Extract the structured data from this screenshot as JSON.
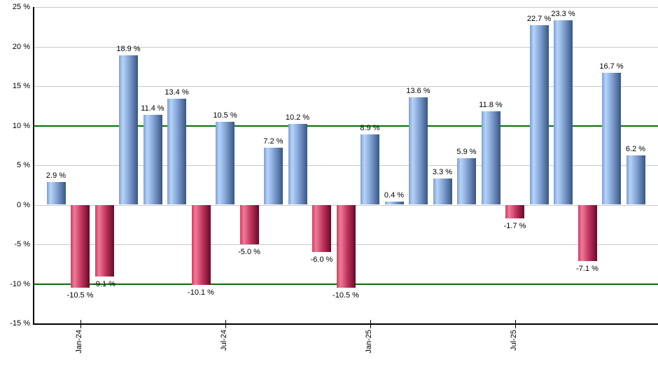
{
  "chart_data": {
    "type": "bar",
    "title": "",
    "xlabel": "",
    "ylabel": "",
    "ylim": [
      -15,
      25
    ],
    "grid": true,
    "bar_count": 25,
    "values": [
      2.9,
      -10.5,
      -9.1,
      18.9,
      11.4,
      13.4,
      -10.1,
      10.5,
      -5.0,
      7.2,
      10.2,
      -6.0,
      -10.5,
      8.9,
      0.4,
      13.6,
      3.3,
      5.9,
      11.8,
      -1.7,
      22.7,
      23.3,
      -7.1,
      16.7,
      6.2
    ],
    "bar_labels": [
      "2.9 %",
      "-10.5 %",
      "-9.1 %",
      "18.9 %",
      "11.4 %",
      "13.4 %",
      "-10.1 %",
      "10.5 %",
      "-5.0 %",
      "7.2 %",
      "10.2 %",
      "-6.0 %",
      "-10.5 %",
      "8.9 %",
      "0.4 %",
      "13.6 %",
      "3.3 %",
      "5.9 %",
      "11.8 %",
      "-1.7 %",
      "22.7 %",
      "23.3 %",
      "-7.1 %",
      "16.7 %",
      "6.2 %"
    ],
    "y_ticks": [
      {
        "value": 25,
        "label": "25 %"
      },
      {
        "value": 20,
        "label": "20 %"
      },
      {
        "value": 15,
        "label": "15 %"
      },
      {
        "value": 10,
        "label": "10 %"
      },
      {
        "value": 5,
        "label": "5 %"
      },
      {
        "value": 0,
        "label": "0 %"
      },
      {
        "value": -5,
        "label": "-5 %"
      },
      {
        "value": -10,
        "label": "-10 %"
      },
      {
        "value": -15,
        "label": "-15 %"
      }
    ],
    "x_tick_labels": [
      {
        "index": 1,
        "label": "Jan-24"
      },
      {
        "index": 7,
        "label": "Jul-24"
      },
      {
        "index": 13,
        "label": "Jan-25"
      },
      {
        "index": 19,
        "label": "Jul-25"
      }
    ],
    "reference_lines": [
      {
        "value": 10,
        "color": "#007200"
      },
      {
        "value": -10,
        "color": "#007200"
      }
    ]
  },
  "colors": {
    "background": "#ffffff",
    "gridline": "#c9c9c9",
    "reference_line": "#007200",
    "axis": "#000000",
    "text": "#000000",
    "positive_bar": {
      "edge": "#7a9fd8",
      "highlight": "#b7d4f7",
      "mid": "#7e9fd3",
      "dark": "#3a567f"
    },
    "negative_bar": {
      "edge": "#d73963",
      "highlight": "#ee7b98",
      "mid": "#c43560",
      "dark": "#600d27"
    }
  }
}
